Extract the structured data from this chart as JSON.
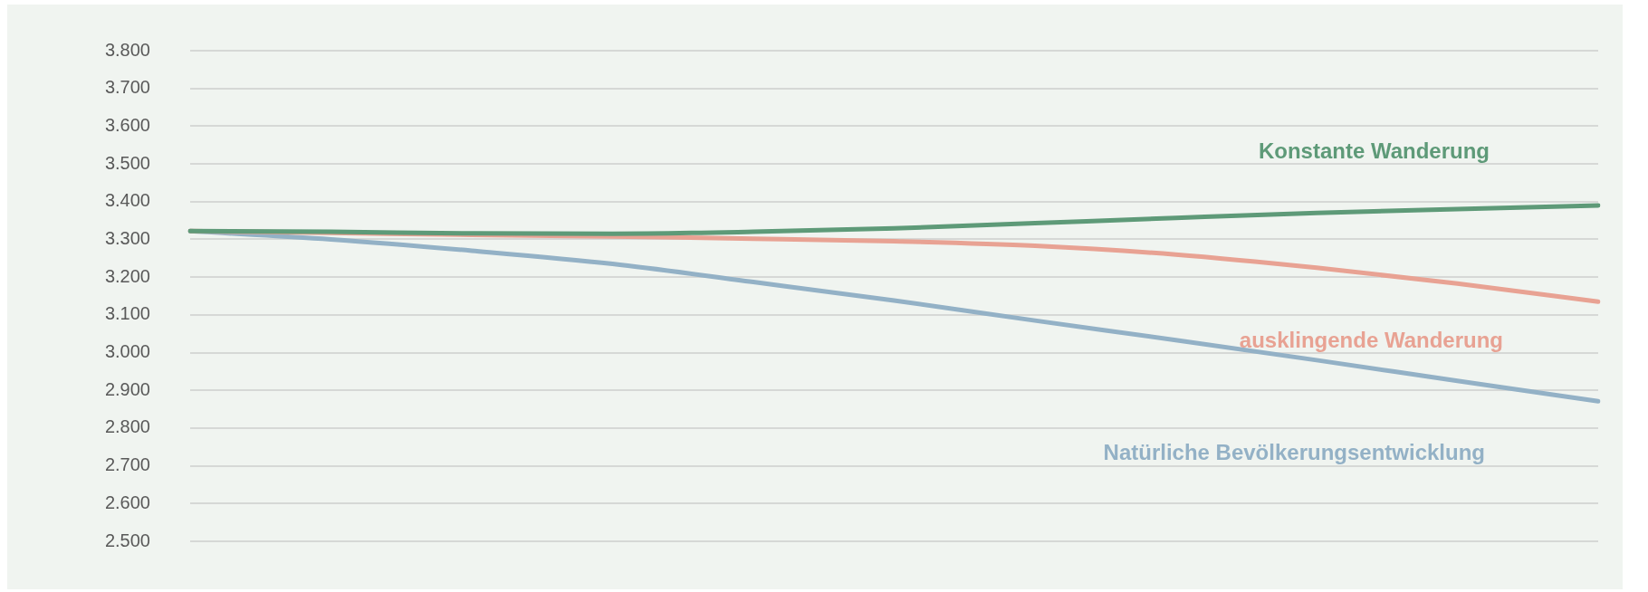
{
  "chart_data": {
    "type": "line",
    "categories": [
      null,
      null,
      null,
      null,
      null,
      null,
      null,
      null,
      null,
      null,
      null
    ],
    "series": [
      {
        "name": "Konstante Wanderung",
        "color": "#5e9a78",
        "values": [
          3322,
          3320,
          3316,
          3315,
          3320,
          3329,
          3343,
          3357,
          3370,
          3380,
          3390
        ]
      },
      {
        "name": "ausklingende Wanderung",
        "color": "#e8a293",
        "values": [
          3322,
          3317,
          3312,
          3308,
          3302,
          3295,
          3283,
          3260,
          3225,
          3183,
          3135
        ]
      },
      {
        "name": "Natürliche Bevölkerungsentwicklung",
        "color": "#93b1c6",
        "values": [
          3322,
          3300,
          3270,
          3235,
          3187,
          3138,
          3085,
          3033,
          2980,
          2925,
          2871
        ]
      }
    ],
    "ylim": [
      2500,
      3800
    ],
    "yticks": [
      {
        "value": 2500,
        "label": "2.500"
      },
      {
        "value": 2600,
        "label": "2.600"
      },
      {
        "value": 2700,
        "label": "2.700"
      },
      {
        "value": 2800,
        "label": "2.800"
      },
      {
        "value": 2900,
        "label": "2.900"
      },
      {
        "value": 3000,
        "label": "3.000"
      },
      {
        "value": 3100,
        "label": "3.100"
      },
      {
        "value": 3200,
        "label": "3.200"
      },
      {
        "value": 3300,
        "label": "3.300"
      },
      {
        "value": 3400,
        "label": "3.400"
      },
      {
        "value": 3500,
        "label": "3.500"
      },
      {
        "value": 3600,
        "label": "3.600"
      },
      {
        "value": 3700,
        "label": "3.700"
      },
      {
        "value": 3800,
        "label": "3.800"
      }
    ],
    "grid": "y",
    "legend": false,
    "marker": "none",
    "line_style": "solid"
  }
}
